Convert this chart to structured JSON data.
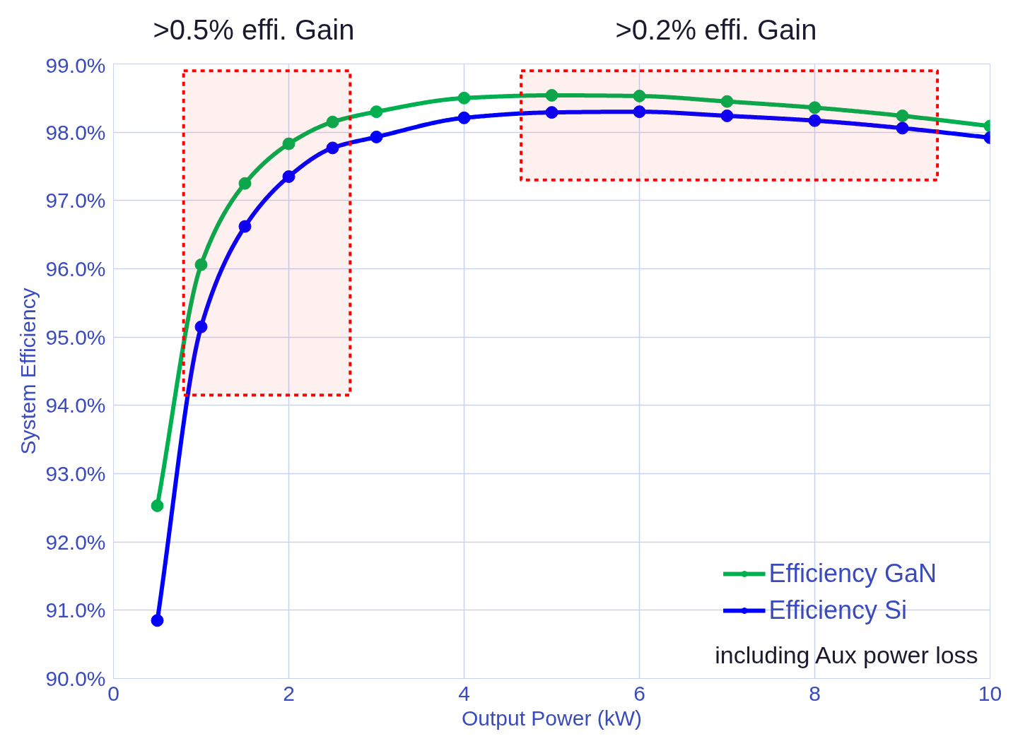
{
  "chart_data": {
    "type": "line",
    "xlabel": "Output Power (kW)",
    "ylabel": "System Efficiency",
    "x": [
      0.5,
      1,
      1.5,
      2,
      2.5,
      3,
      4,
      5,
      6,
      7,
      8,
      9,
      10
    ],
    "series": [
      {
        "name": "Efficiency GaN",
        "color": "#00b050",
        "values": [
          92.53,
          96.06,
          97.25,
          97.83,
          98.15,
          98.3,
          98.5,
          98.54,
          98.53,
          98.45,
          98.36,
          98.24,
          98.09
        ]
      },
      {
        "name": "Efficiency Si",
        "color": "#0000ff",
        "values": [
          90.85,
          95.15,
          96.62,
          97.35,
          97.77,
          97.93,
          98.21,
          98.29,
          98.3,
          98.24,
          98.17,
          98.06,
          97.92
        ]
      }
    ],
    "xlim": [
      0,
      10
    ],
    "xticks": [
      0,
      2,
      4,
      6,
      8,
      10
    ],
    "ylim": [
      90,
      99
    ],
    "yticks": [
      {
        "value": 90,
        "label": "90.0%"
      },
      {
        "value": 91,
        "label": "91.0%"
      },
      {
        "value": 92,
        "label": "92.0%"
      },
      {
        "value": 93,
        "label": "93.0%"
      },
      {
        "value": 94,
        "label": "94.0%"
      },
      {
        "value": 95,
        "label": "95.0%"
      },
      {
        "value": 96,
        "label": "96.0%"
      },
      {
        "value": 97,
        "label": "97.0%"
      },
      {
        "value": 98,
        "label": "98.0%"
      },
      {
        "value": 99,
        "label": "99.0%"
      }
    ],
    "bands": [
      {
        "axis": "x",
        "from": 0.8,
        "to": 2.7,
        "label": ">0.5% effi. Gain",
        "color": "#ff0000"
      },
      {
        "axis": "x",
        "from": 4.65,
        "to": 9.4,
        "label": ">0.2% effi. Gain",
        "color": "#ff0000"
      }
    ],
    "annotations": [
      "including Aux power loss"
    ],
    "grid": true,
    "legend": "bottom right",
    "marker": "circle",
    "line_style": "solid"
  }
}
